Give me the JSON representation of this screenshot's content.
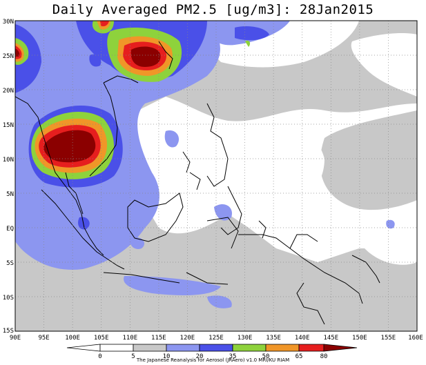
{
  "title": "Daily Averaged PM2.5 [ug/m3]: 28Jan2015",
  "map": {
    "lon_range": [
      90,
      160
    ],
    "lat_range": [
      -15,
      30
    ],
    "lon_ticks": [
      "90E",
      "95E",
      "100E",
      "105E",
      "110E",
      "115E",
      "120E",
      "125E",
      "130E",
      "135E",
      "140E",
      "145E",
      "150E",
      "155E",
      "160E"
    ],
    "lat_ticks": [
      "30N",
      "25N",
      "20N",
      "15N",
      "10N",
      "5N",
      "EQ",
      "5S",
      "10S",
      "15S"
    ],
    "grid_style": "dotted"
  },
  "colorbar": {
    "levels": [
      "0",
      "5",
      "10",
      "20",
      "35",
      "50",
      "65",
      "80"
    ],
    "colors": [
      "#ffffff",
      "#ffffff",
      "#c8c8c8",
      "#8c96f0",
      "#4a50e8",
      "#8ed23c",
      "#f09628",
      "#e61e1e",
      "#8b0000"
    ]
  },
  "credit": "The Japanese Reanalysis for Aerosol (JRAero) v1.0 MRI/KU RIAM"
}
